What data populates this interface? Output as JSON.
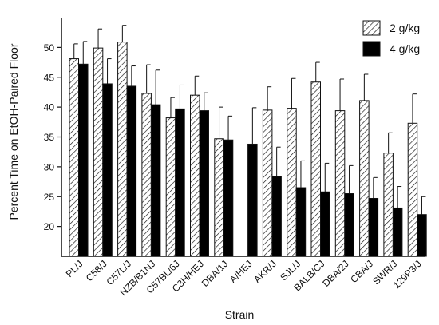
{
  "chart_data": {
    "type": "bar",
    "xlabel": "Strain",
    "ylabel": "Percent Time on EtOH-Paired Floor",
    "ylim": [
      15,
      55
    ],
    "yticks": [
      20,
      25,
      30,
      35,
      40,
      45,
      50
    ],
    "grid": false,
    "legend_position": "top-right",
    "categories": [
      "PL/J",
      "C58/J",
      "C57L/J",
      "NZB/B1NJ",
      "C57BL/6J",
      "C3H/HEJ",
      "DBA/1J",
      "A/HEJ",
      "AKR/J",
      "SJL/J",
      "BALB/CJ",
      "DBA/2J",
      "CBA/J",
      "SWR/J",
      "129P3/J"
    ],
    "series": [
      {
        "name": "2 g/kg",
        "pattern": "hatched",
        "values": [
          48.1,
          49.9,
          50.9,
          42.3,
          38.2,
          42.0,
          34.7,
          null,
          39.5,
          39.8,
          44.2,
          39.4,
          41.1,
          32.3,
          37.3
        ],
        "errors": [
          2.5,
          3.2,
          2.8,
          4.8,
          3.4,
          3.2,
          5.3,
          null,
          3.9,
          5.0,
          3.3,
          5.3,
          4.4,
          3.4,
          4.9
        ]
      },
      {
        "name": "4 g/kg",
        "pattern": "solid",
        "color": "#000000",
        "values": [
          47.2,
          43.9,
          43.5,
          40.4,
          39.7,
          39.4,
          34.5,
          33.8,
          28.4,
          26.5,
          25.8,
          25.5,
          24.7,
          23.1,
          22.0
        ],
        "errors": [
          3.8,
          4.2,
          3.4,
          5.8,
          4.0,
          3.0,
          4.0,
          6.1,
          4.9,
          4.5,
          4.8,
          4.7,
          3.5,
          3.6,
          3.0
        ]
      }
    ]
  }
}
